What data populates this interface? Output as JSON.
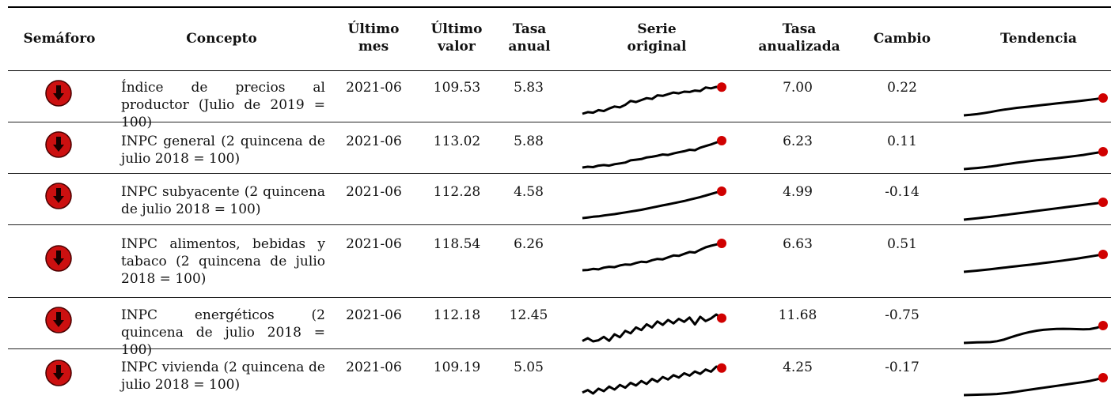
{
  "headers": {
    "semaforo": "Semáforo",
    "concepto": "Concepto",
    "ultimo_mes": [
      "Último",
      "mes"
    ],
    "ultimo_valor": [
      "Último",
      "valor"
    ],
    "tasa_anual": [
      "Tasa",
      "anual"
    ],
    "serie_original": [
      "Serie",
      "original"
    ],
    "tasa_anualizada": [
      "Tasa",
      "anualizada"
    ],
    "cambio": "Cambio",
    "tendencia": "Tendencia"
  },
  "rows": [
    {
      "semaforo": "down-arrow-icon",
      "concepto": "Índice de precios al productor (Julio de 2019 = 100)",
      "ultimo_mes": "2021-06",
      "ultimo_valor": "109.53",
      "tasa_anual": "5.83",
      "tasa_anualizada": "7.00",
      "cambio": "0.22",
      "serie_original": [
        100.0,
        100.6,
        100.4,
        101.3,
        101.0,
        101.9,
        102.6,
        102.3,
        103.2,
        104.6,
        104.2,
        104.9,
        105.6,
        105.3,
        106.6,
        106.4,
        107.0,
        107.6,
        107.3,
        107.9,
        107.8,
        108.3,
        108.1,
        109.4,
        109.1,
        109.6,
        109.53
      ],
      "tendencia": [
        100.0,
        100.3,
        100.7,
        101.2,
        101.8,
        102.5,
        103.1,
        103.6,
        104.1,
        104.5,
        104.9,
        105.3,
        105.7,
        106.1,
        106.5,
        106.9,
        107.3,
        107.7,
        108.1,
        108.5,
        109.0,
        109.5
      ]
    },
    {
      "semaforo": "down-arrow-icon",
      "concepto": "INPC general (2 quincena de julio 2018 = 100)",
      "ultimo_mes": "2021-06",
      "ultimo_valor": "113.02",
      "tasa_anual": "5.88",
      "tasa_anualizada": "6.23",
      "cambio": "0.11",
      "serie_original": [
        100.0,
        100.4,
        100.2,
        100.9,
        101.2,
        100.9,
        101.6,
        102.0,
        102.4,
        103.5,
        103.8,
        104.1,
        104.9,
        105.2,
        105.7,
        106.3,
        106.1,
        106.8,
        107.4,
        107.9,
        108.6,
        108.4,
        109.6,
        110.4,
        111.2,
        112.1,
        113.02
      ],
      "tendencia": [
        100.0,
        100.4,
        100.8,
        101.3,
        101.9,
        102.6,
        103.4,
        104.1,
        104.8,
        105.4,
        106.0,
        106.6,
        107.1,
        107.6,
        108.1,
        108.7,
        109.3,
        109.9,
        110.6,
        111.4,
        112.2,
        113.0
      ]
    },
    {
      "semaforo": "down-arrow-icon",
      "concepto": "INPC subyacente (2 quincena de julio 2018 = 100)",
      "ultimo_mes": "2021-06",
      "ultimo_valor": "112.28",
      "tasa_anual": "4.58",
      "tasa_anualizada": "4.99",
      "cambio": "-0.14",
      "serie_original": [
        100.0,
        100.3,
        100.6,
        100.8,
        101.2,
        101.5,
        101.8,
        102.2,
        102.6,
        103.0,
        103.4,
        103.8,
        104.3,
        104.8,
        105.3,
        105.8,
        106.3,
        106.8,
        107.3,
        107.8,
        108.4,
        109.0,
        109.6,
        110.3,
        111.0,
        111.7,
        112.28
      ],
      "tendencia": [
        100.0,
        100.5,
        101.0,
        101.5,
        102.0,
        102.6,
        103.2,
        103.8,
        104.4,
        105.0,
        105.6,
        106.2,
        106.8,
        107.4,
        108.0,
        108.6,
        109.2,
        109.8,
        110.4,
        111.0,
        111.6,
        112.3
      ]
    },
    {
      "semaforo": "down-arrow-icon",
      "concepto": "INPC alimentos, bebidas y tabaco (2 quincena de julio 2018 = 100)",
      "ultimo_mes": "2021-06",
      "ultimo_valor": "118.54",
      "tasa_anual": "6.26",
      "tasa_anualizada": "6.63",
      "cambio": "0.51",
      "serie_original": [
        100.0,
        100.2,
        100.9,
        100.6,
        101.8,
        102.4,
        102.1,
        103.3,
        104.0,
        103.8,
        105.0,
        105.9,
        105.6,
        106.9,
        107.8,
        107.5,
        108.9,
        110.2,
        109.9,
        111.3,
        112.6,
        112.2,
        114.1,
        115.8,
        116.9,
        117.8,
        118.54
      ],
      "tendencia": [
        100.0,
        100.6,
        101.3,
        102.0,
        102.8,
        103.6,
        104.4,
        105.2,
        106.0,
        106.8,
        107.6,
        108.4,
        109.3,
        110.2,
        111.1,
        112.0,
        113.0,
        114.0,
        115.1,
        116.2,
        117.4,
        118.5
      ]
    },
    {
      "semaforo": "down-arrow-icon",
      "concepto": "INPC energéticos (2 quincena de julio 2018 = 100)",
      "ultimo_mes": "2021-06",
      "ultimo_valor": "112.18",
      "tasa_anual": "12.45",
      "tasa_anualizada": "11.68",
      "cambio": "-0.75",
      "serie_original": [
        100.0,
        101.5,
        99.8,
        100.4,
        102.2,
        100.1,
        103.6,
        102.0,
        105.4,
        104.1,
        107.2,
        105.8,
        108.9,
        107.2,
        110.4,
        108.6,
        111.2,
        109.4,
        111.8,
        110.2,
        112.5,
        108.8,
        112.9,
        110.6,
        112.0,
        114.1,
        112.18
      ],
      "tendencia": [
        100.0,
        100.2,
        100.4,
        100.5,
        100.6,
        101.2,
        102.3,
        103.8,
        105.3,
        106.6,
        107.7,
        108.6,
        109.2,
        109.6,
        109.8,
        109.9,
        109.8,
        109.7,
        109.6,
        109.7,
        110.6,
        112.2
      ]
    },
    {
      "semaforo": "down-arrow-icon",
      "concepto": "INPC vivienda (2 quincena de julio 2018 = 100)",
      "ultimo_mes": "2021-06",
      "ultimo_valor": "109.19",
      "tasa_anual": "5.05",
      "tasa_anualizada": "4.25",
      "cambio": "-0.17",
      "serie_original": [
        100.0,
        100.9,
        99.6,
        101.4,
        100.5,
        102.2,
        101.1,
        102.8,
        101.8,
        103.6,
        102.6,
        104.3,
        103.2,
        105.1,
        104.0,
        105.8,
        104.9,
        106.5,
        105.6,
        107.2,
        106.3,
        107.9,
        107.0,
        108.6,
        107.8,
        109.7,
        109.19
      ],
      "tendencia": [
        100.0,
        100.1,
        100.2,
        100.3,
        100.4,
        100.6,
        100.9,
        101.3,
        101.8,
        102.4,
        102.9,
        103.4,
        103.9,
        104.4,
        104.9,
        105.4,
        105.9,
        106.4,
        106.9,
        107.5,
        108.3,
        109.2
      ]
    }
  ],
  "colors": {
    "semaforo_red": "#cc1010",
    "endpoint_red": "#d00000",
    "line": "#000000"
  }
}
